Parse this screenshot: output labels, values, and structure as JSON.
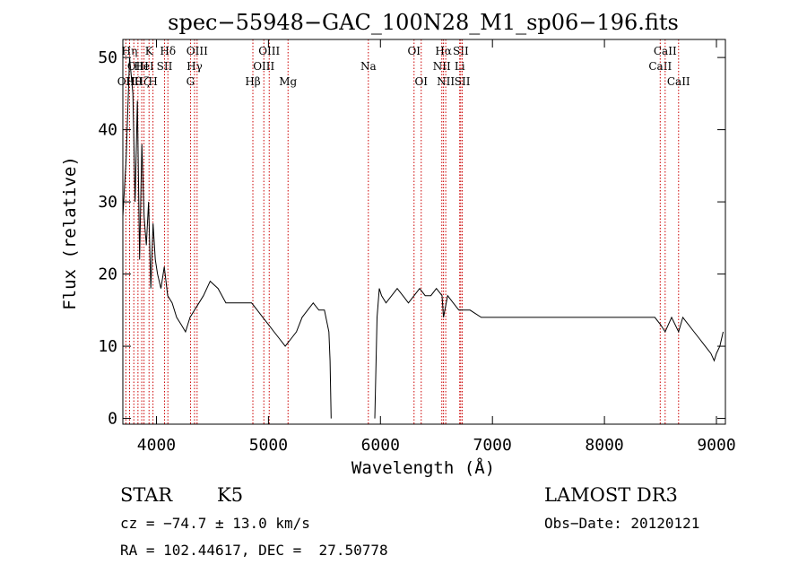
{
  "chart_data": {
    "type": "line",
    "title": "spec−55948−GAC_100N28_M1_sp06−196.fits",
    "xlabel": "Wavelength (Å)",
    "ylabel": "Flux (relative)",
    "xlim": [
      3700,
      9080
    ],
    "ylim": [
      -0.8,
      52.5
    ],
    "x_ticks": [
      4000,
      5000,
      6000,
      7000,
      8000,
      9000
    ],
    "x_tick_labels": [
      "4000",
      "5000",
      "6000",
      "7000",
      "8000",
      "9000"
    ],
    "y_ticks": [
      0,
      10,
      20,
      30,
      40,
      50
    ],
    "y_tick_labels": [
      "0",
      "10",
      "20",
      "30",
      "40",
      "50"
    ],
    "grid": false,
    "line_color": "#000000",
    "marker_color": "#cc0000",
    "series": [
      {
        "x": [
          3700,
          3730,
          3760,
          3790,
          3810,
          3830,
          3850,
          3870,
          3890,
          3910,
          3930,
          3950,
          3970,
          3990,
          4010,
          4040,
          4070,
          4100,
          4140,
          4180,
          4220,
          4260,
          4300,
          4340,
          4380,
          4420,
          4480,
          4550,
          4620,
          4700,
          4780,
          4850,
          4900,
          4950,
          5000,
          5050,
          5100,
          5150,
          5200,
          5250,
          5300,
          5350,
          5400,
          5450,
          5500,
          5540,
          5550,
          5560
        ],
        "y": [
          28,
          36,
          50,
          45,
          30,
          44,
          22,
          38,
          28,
          24,
          30,
          18,
          27,
          22,
          20,
          18,
          21,
          17,
          16,
          14,
          13,
          12,
          14,
          15,
          16,
          17,
          19,
          18,
          16,
          16,
          16,
          16,
          15,
          14,
          13,
          12,
          11,
          10,
          11,
          12,
          14,
          15,
          16,
          15,
          15,
          12,
          8,
          0
        ]
      },
      {
        "x": [
          5950,
          5970,
          5990,
          6010,
          6050,
          6100,
          6150,
          6200,
          6250,
          6300,
          6350,
          6400,
          6450,
          6500,
          6550,
          6563,
          6600,
          6650,
          6700,
          6750,
          6800,
          6900,
          7000,
          7100,
          7200,
          7300,
          7400,
          7500,
          7600,
          7700,
          7800,
          7900,
          8000,
          8100,
          8200,
          8300,
          8400,
          8450,
          8500,
          8542,
          8600,
          8662,
          8700,
          8800,
          8850,
          8900,
          8950,
          8980,
          9000,
          9030,
          9060
        ],
        "y": [
          0,
          14,
          18,
          17,
          16,
          17,
          18,
          17,
          16,
          17,
          18,
          17,
          17,
          18,
          17,
          14,
          17,
          16,
          15,
          15,
          15,
          14,
          14,
          14,
          14,
          14,
          14,
          14,
          14,
          14,
          14,
          14,
          14,
          14,
          14,
          14,
          14,
          14,
          13,
          12,
          14,
          12,
          14,
          12,
          11,
          10,
          9,
          8,
          9,
          10,
          12
        ]
      }
    ],
    "line_markers": [
      {
        "wl": 3727,
        "label": "OII",
        "row": 3
      },
      {
        "wl": 3760,
        "label": "Hη",
        "row": 1
      },
      {
        "wl": 3798,
        "label": "Hθ",
        "row": 3
      },
      {
        "wl": 3835,
        "label": "OIII",
        "row": 2
      },
      {
        "wl": 3869,
        "label": "Hζ",
        "row": 3
      },
      {
        "wl": 3889,
        "label": "HeI",
        "row": 2
      },
      {
        "wl": 3934,
        "label": "K",
        "row": 1
      },
      {
        "wl": 3969,
        "label": "H",
        "row": 3
      },
      {
        "wl": 4072,
        "label": "SII",
        "row": 2
      },
      {
        "wl": 4102,
        "label": "Hδ",
        "row": 1
      },
      {
        "wl": 4304,
        "label": "G",
        "row": 3
      },
      {
        "wl": 4340,
        "label": "Hγ",
        "row": 2
      },
      {
        "wl": 4363,
        "label": "OIII",
        "row": 1
      },
      {
        "wl": 4861,
        "label": "Hβ",
        "row": 3
      },
      {
        "wl": 4959,
        "label": "OIII",
        "row": 2
      },
      {
        "wl": 5007,
        "label": "OIII",
        "row": 1
      },
      {
        "wl": 5175,
        "label": "Mg",
        "row": 3
      },
      {
        "wl": 5892,
        "label": "Na",
        "row": 2
      },
      {
        "wl": 6300,
        "label": "OI",
        "row": 1
      },
      {
        "wl": 6364,
        "label": "OI",
        "row": 3
      },
      {
        "wl": 6548,
        "label": "NII",
        "row": 2
      },
      {
        "wl": 6563,
        "label": "Hα",
        "row": 1
      },
      {
        "wl": 6583,
        "label": "NII",
        "row": 3
      },
      {
        "wl": 6708,
        "label": "Li",
        "row": 2
      },
      {
        "wl": 6717,
        "label": "SII",
        "row": 1
      },
      {
        "wl": 6731,
        "label": "SII",
        "row": 3
      },
      {
        "wl": 8498,
        "label": "CaII",
        "row": 2
      },
      {
        "wl": 8542,
        "label": "CaII",
        "row": 1
      },
      {
        "wl": 8662,
        "label": "CaII",
        "row": 3
      }
    ]
  },
  "info": {
    "object_class": "STAR",
    "subclass": "K5",
    "survey": "LAMOST DR3",
    "redshift": "cz = −74.7 ± 13.0 km/s",
    "obs_date": "Obs−Date: 20120121",
    "coords": "RA = 102.44617, DEC =  27.50778"
  }
}
